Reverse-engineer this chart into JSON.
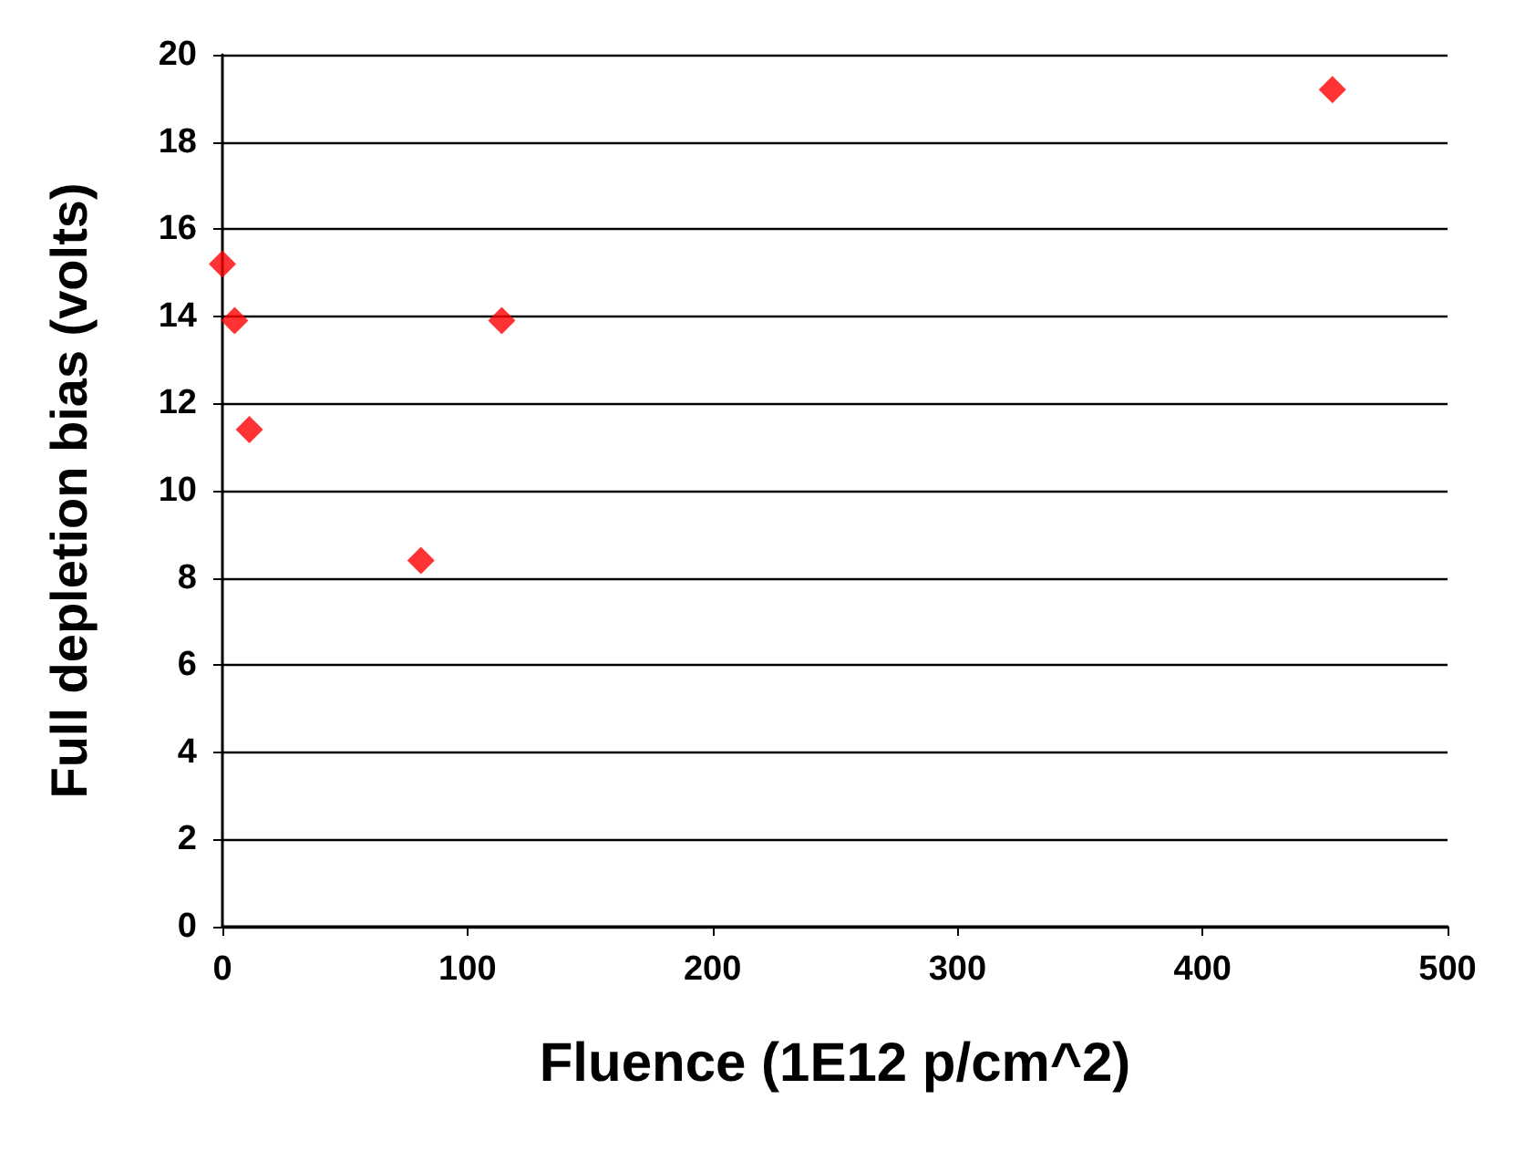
{
  "chart_data": {
    "type": "scatter",
    "xlabel": "Fluence (1E12 p/cm^2)",
    "ylabel": "Full depletion bias (volts)",
    "x": [
      0,
      5,
      11,
      81,
      114,
      453
    ],
    "series": [
      {
        "color": "#ff0000",
        "values": [
          15.2,
          13.9,
          11.4,
          8.4,
          13.9,
          19.2
        ]
      }
    ],
    "xlim": [
      0,
      500
    ],
    "xticks": [
      0,
      100,
      200,
      300,
      400,
      500
    ],
    "ylim": [
      0,
      20
    ],
    "yticks": [
      0,
      2,
      4,
      6,
      8,
      10,
      12,
      14,
      16,
      18,
      20
    ],
    "grid": "y",
    "marker": "diamond"
  }
}
